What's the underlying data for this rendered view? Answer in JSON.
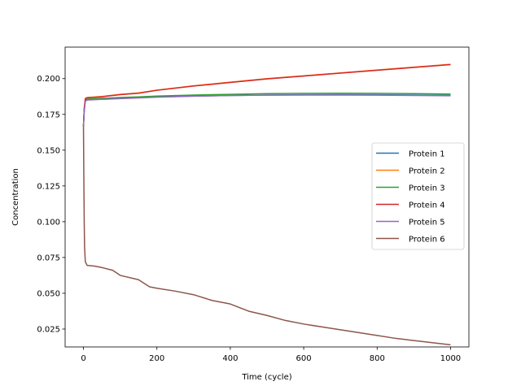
{
  "chart_data": {
    "type": "line",
    "title": "",
    "xlabel": "Time (cycle)",
    "ylabel": "Concentration",
    "xlim": [
      -50,
      1050
    ],
    "ylim": [
      0.0125,
      0.222
    ],
    "xticks": [
      0,
      200,
      400,
      600,
      800,
      1000
    ],
    "yticks": [
      0.025,
      0.05,
      0.075,
      0.1,
      0.125,
      0.15,
      0.175,
      0.2
    ],
    "ytick_labels": [
      "0.025",
      "0.050",
      "0.075",
      "0.100",
      "0.125",
      "0.150",
      "0.175",
      "0.200"
    ],
    "grid": false,
    "legend_position": "center-right",
    "series": [
      {
        "name": "Protein 1",
        "color": "#1f77b4",
        "x": [
          0,
          2,
          5,
          10,
          50,
          100,
          150,
          200,
          300,
          400,
          500,
          600,
          700,
          800,
          900,
          1000
        ],
        "y": [
          0.1667,
          0.178,
          0.1845,
          0.1855,
          0.186,
          0.1865,
          0.1868,
          0.1872,
          0.1878,
          0.1882,
          0.1885,
          0.1887,
          0.1888,
          0.1887,
          0.1885,
          0.1883
        ]
      },
      {
        "name": "Protein 2",
        "color": "#ff7f0e",
        "x": [
          0,
          2,
          5,
          10,
          50,
          100,
          150,
          200,
          300,
          400,
          500,
          600,
          700,
          800,
          900,
          1000
        ],
        "y": [
          0.1667,
          0.179,
          0.1862,
          0.1868,
          0.1875,
          0.189,
          0.19,
          0.192,
          0.195,
          0.1975,
          0.2,
          0.202,
          0.204,
          0.206,
          0.208,
          0.21
        ]
      },
      {
        "name": "Protein 3",
        "color": "#2ca02c",
        "x": [
          0,
          2,
          5,
          10,
          50,
          100,
          150,
          200,
          300,
          400,
          500,
          600,
          700,
          800,
          900,
          1000
        ],
        "y": [
          0.1667,
          0.178,
          0.1848,
          0.1857,
          0.1862,
          0.1868,
          0.1872,
          0.1878,
          0.1885,
          0.189,
          0.1895,
          0.1897,
          0.1898,
          0.1897,
          0.1895,
          0.1892
        ]
      },
      {
        "name": "Protein 4",
        "color": "#d62728",
        "x": [
          0,
          2,
          5,
          10,
          50,
          100,
          150,
          200,
          300,
          400,
          500,
          600,
          700,
          800,
          900,
          1000
        ],
        "y": [
          0.1667,
          0.179,
          0.186,
          0.1866,
          0.1873,
          0.1888,
          0.1898,
          0.1918,
          0.1948,
          0.1973,
          0.1998,
          0.2018,
          0.2038,
          0.2058,
          0.2078,
          0.2098
        ]
      },
      {
        "name": "Protein 5",
        "color": "#9467bd",
        "x": [
          0,
          2,
          5,
          10,
          50,
          100,
          150,
          200,
          300,
          400,
          500,
          600,
          700,
          800,
          900,
          1000
        ],
        "y": [
          0.1667,
          0.177,
          0.1842,
          0.185,
          0.1855,
          0.186,
          0.1865,
          0.187,
          0.1877,
          0.1882,
          0.1884,
          0.1885,
          0.1885,
          0.1884,
          0.1882,
          0.188
        ]
      },
      {
        "name": "Protein 6",
        "color": "#8c564b",
        "x": [
          0,
          1,
          2,
          3,
          5,
          10,
          30,
          50,
          80,
          100,
          150,
          180,
          200,
          250,
          300,
          350,
          400,
          450,
          500,
          550,
          600,
          650,
          700,
          750,
          800,
          850,
          900,
          950,
          1000
        ],
        "y": [
          0.1667,
          0.13,
          0.1,
          0.082,
          0.072,
          0.0695,
          0.069,
          0.068,
          0.066,
          0.0625,
          0.0595,
          0.0545,
          0.0535,
          0.0515,
          0.049,
          0.045,
          0.0425,
          0.0375,
          0.0345,
          0.031,
          0.0285,
          0.0265,
          0.0245,
          0.0225,
          0.0205,
          0.0185,
          0.017,
          0.0155,
          0.014
        ]
      }
    ]
  }
}
